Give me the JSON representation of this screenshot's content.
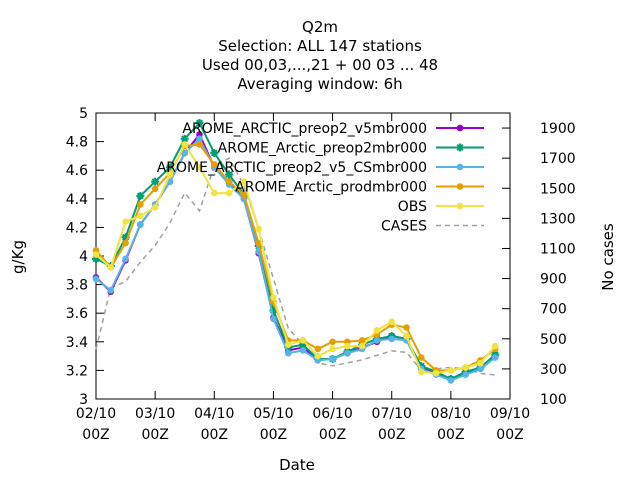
{
  "chart_data": {
    "type": "line",
    "title_lines": [
      "Q2m",
      "Selection: ALL     147 stations",
      "Used  00,03,...,21 + 00 03 ... 48",
      "Averaging window:  6h"
    ],
    "xlabel": "Date",
    "ylabel": "g/Kg",
    "y2label": "No cases",
    "ylim": [
      3.0,
      5.0
    ],
    "y2lim": [
      100,
      2000
    ],
    "xlim": [
      0,
      35
    ],
    "x_ticks": [
      {
        "x": 0,
        "line1": "02/10",
        "line2": "00Z"
      },
      {
        "x": 5,
        "line1": "03/10",
        "line2": "00Z"
      },
      {
        "x": 10,
        "line1": "04/10",
        "line2": "00Z"
      },
      {
        "x": 15,
        "line1": "05/10",
        "line2": "00Z"
      },
      {
        "x": 20,
        "line1": "06/10",
        "line2": "00Z"
      },
      {
        "x": 25,
        "line1": "07/10",
        "line2": "00Z"
      },
      {
        "x": 30,
        "line1": "08/10",
        "line2": "00Z"
      },
      {
        "x": 35,
        "line1": "09/10",
        "line2": "00Z"
      }
    ],
    "y_ticks": [
      "3",
      "3.2",
      "3.4",
      "3.6",
      "3.8",
      "4",
      "4.2",
      "4.4",
      "4.6",
      "4.8",
      "5"
    ],
    "y2_ticks": [
      "100",
      "300",
      "500",
      "700",
      "900",
      "1100",
      "1300",
      "1500",
      "1700",
      "1900"
    ],
    "x": [
      0,
      1.25,
      2.5,
      3.75,
      5,
      6.25,
      7.5,
      8.75,
      10,
      11.25,
      12.5,
      13.75,
      15,
      16.25,
      17.5,
      18.75,
      20,
      21.25,
      22.5,
      23.75,
      25,
      26.25,
      27.5,
      28.75,
      30,
      31.25,
      32.5,
      33.75
    ],
    "series": [
      {
        "name": "AROME_ARCTIC_preop2_v5mbr000",
        "color": "#9400d3",
        "marker": "circle",
        "values": [
          3.85,
          3.75,
          3.97,
          4.22,
          4.36,
          4.52,
          4.72,
          4.85,
          4.62,
          4.52,
          4.4,
          4.02,
          3.57,
          3.34,
          3.36,
          3.28,
          3.28,
          3.32,
          3.36,
          3.4,
          3.44,
          3.42,
          3.22,
          3.18,
          3.14,
          3.18,
          3.22,
          3.3
        ]
      },
      {
        "name": "AROME_Arctic_preop2mbr000",
        "color": "#009e73",
        "marker": "star",
        "values": [
          3.98,
          3.93,
          4.13,
          4.42,
          4.52,
          4.62,
          4.82,
          4.93,
          4.72,
          4.57,
          4.43,
          4.07,
          3.62,
          3.36,
          3.38,
          3.28,
          3.28,
          3.33,
          3.38,
          3.42,
          3.44,
          3.42,
          3.23,
          3.19,
          3.14,
          3.19,
          3.22,
          3.31
        ]
      },
      {
        "name": "AROME_ARCTIC_preop2_v5_CSmbr000",
        "color": "#56b4e9",
        "marker": "circle",
        "values": [
          3.84,
          3.76,
          3.98,
          4.22,
          4.36,
          4.52,
          4.72,
          4.82,
          4.62,
          4.5,
          4.4,
          4.03,
          3.56,
          3.32,
          3.34,
          3.27,
          3.28,
          3.32,
          3.35,
          3.41,
          3.42,
          3.41,
          3.21,
          3.17,
          3.13,
          3.17,
          3.21,
          3.29
        ]
      },
      {
        "name": "AROME_Arctic_prodmbr000",
        "color": "#e69f00",
        "marker": "circle",
        "values": [
          4.04,
          3.92,
          4.09,
          4.36,
          4.47,
          4.58,
          4.77,
          4.78,
          4.64,
          4.52,
          4.43,
          4.09,
          3.68,
          3.41,
          3.41,
          3.35,
          3.4,
          3.4,
          3.41,
          3.45,
          3.52,
          3.5,
          3.29,
          3.2,
          3.2,
          3.22,
          3.27,
          3.35
        ]
      },
      {
        "name": "OBS",
        "color": "#f0e442",
        "marker": "circle",
        "values": [
          4.01,
          3.92,
          4.24,
          4.28,
          4.34,
          4.57,
          4.78,
          4.62,
          4.44,
          4.44,
          4.52,
          4.19,
          3.71,
          3.38,
          3.41,
          3.3,
          3.35,
          3.37,
          3.37,
          3.48,
          3.54,
          3.44,
          3.19,
          3.18,
          3.2,
          3.22,
          3.25,
          3.37
        ]
      },
      {
        "name": "CASES",
        "color": "#a0a0a0",
        "marker": "none",
        "dashed": true,
        "y_axis": "right",
        "values": [
          430,
          840,
          880,
          1010,
          1120,
          1270,
          1470,
          1350,
          1650,
          1700,
          1520,
          1230,
          900,
          570,
          460,
          340,
          320,
          340,
          360,
          390,
          420,
          410,
          290,
          300,
          310,
          300,
          270,
          260
        ]
      }
    ]
  }
}
